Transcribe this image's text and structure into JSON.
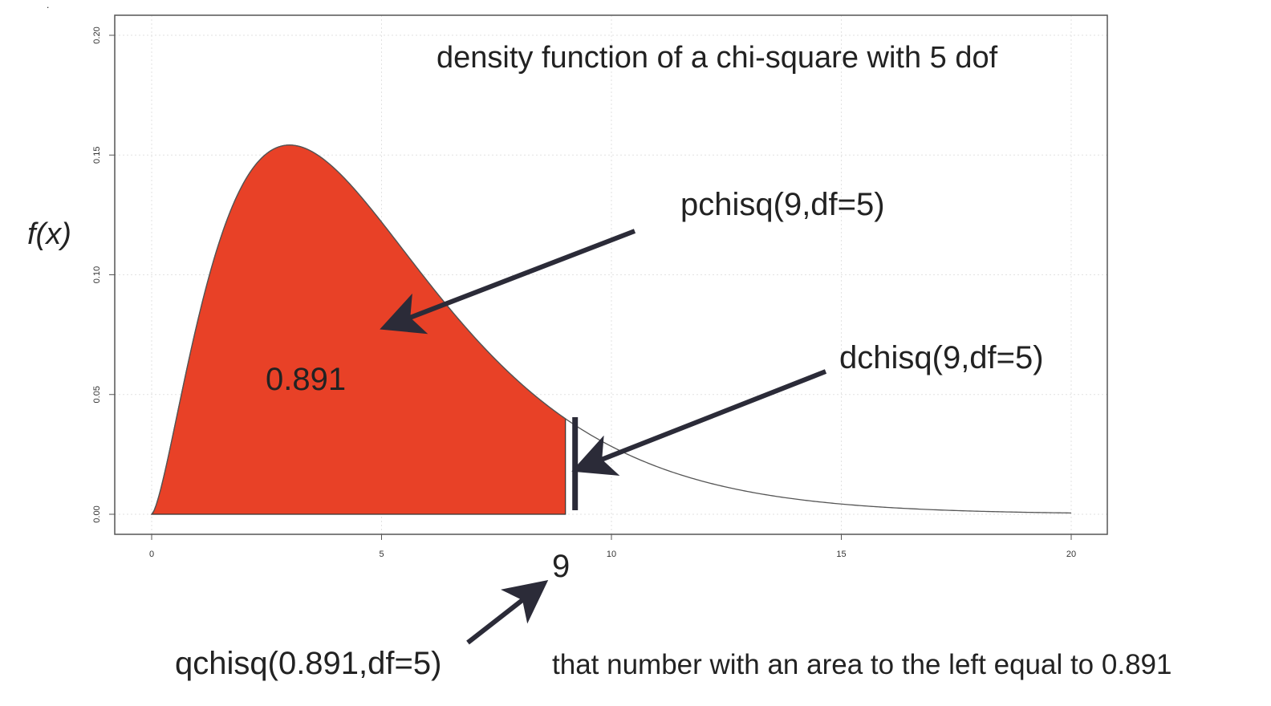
{
  "chart_data": {
    "type": "area",
    "title": "density function of a chi-square with 5 dof",
    "ylabel": "f(x)",
    "xlabel": "",
    "xlim": [
      0,
      20
    ],
    "ylim": [
      0,
      0.2
    ],
    "x_ticks": [
      "0",
      "5",
      "10",
      "15",
      "20"
    ],
    "y_ticks": [
      "0.00",
      "0.05",
      "0.10",
      "0.15",
      "0.20"
    ],
    "grid": true,
    "dof": 5,
    "shaded_region": {
      "from": 0,
      "to": 9,
      "color": "#e84127"
    },
    "cutoff_x": 9,
    "series": [
      {
        "x": [
          0,
          0.5,
          1,
          1.5,
          2,
          2.5,
          3,
          3.5,
          4,
          4.5,
          5,
          6,
          7,
          8,
          9,
          10,
          11,
          12,
          13,
          14,
          15,
          16,
          17,
          18,
          19,
          20
        ],
        "values": [
          0,
          0.0366,
          0.0807,
          0.1157,
          0.1384,
          0.15,
          0.1542,
          0.1525,
          0.1465,
          0.1377,
          0.1254,
          0.0999,
          0.0722,
          0.0556,
          0.04,
          0.0281,
          0.0193,
          0.0129,
          0.0085,
          0.0055,
          0.0035,
          0.0022,
          0.0014,
          0.0009,
          0.0005,
          0.0003
        ]
      }
    ]
  },
  "annotations": {
    "area_value": "0.891",
    "pchisq": "pchisq(9,df=5)",
    "dchisq": "dchisq(9,df=5)",
    "qchisq": "qchisq(0.891,df=5)",
    "cutoff_label": "9",
    "description": "that number with an area to the left equal to 0.891",
    "dot": "."
  },
  "colors": {
    "fill": "#e84127",
    "curve": "#555555",
    "arrow": "#2b2b38",
    "grid": "#e2e2e2",
    "frame": "#555555"
  }
}
